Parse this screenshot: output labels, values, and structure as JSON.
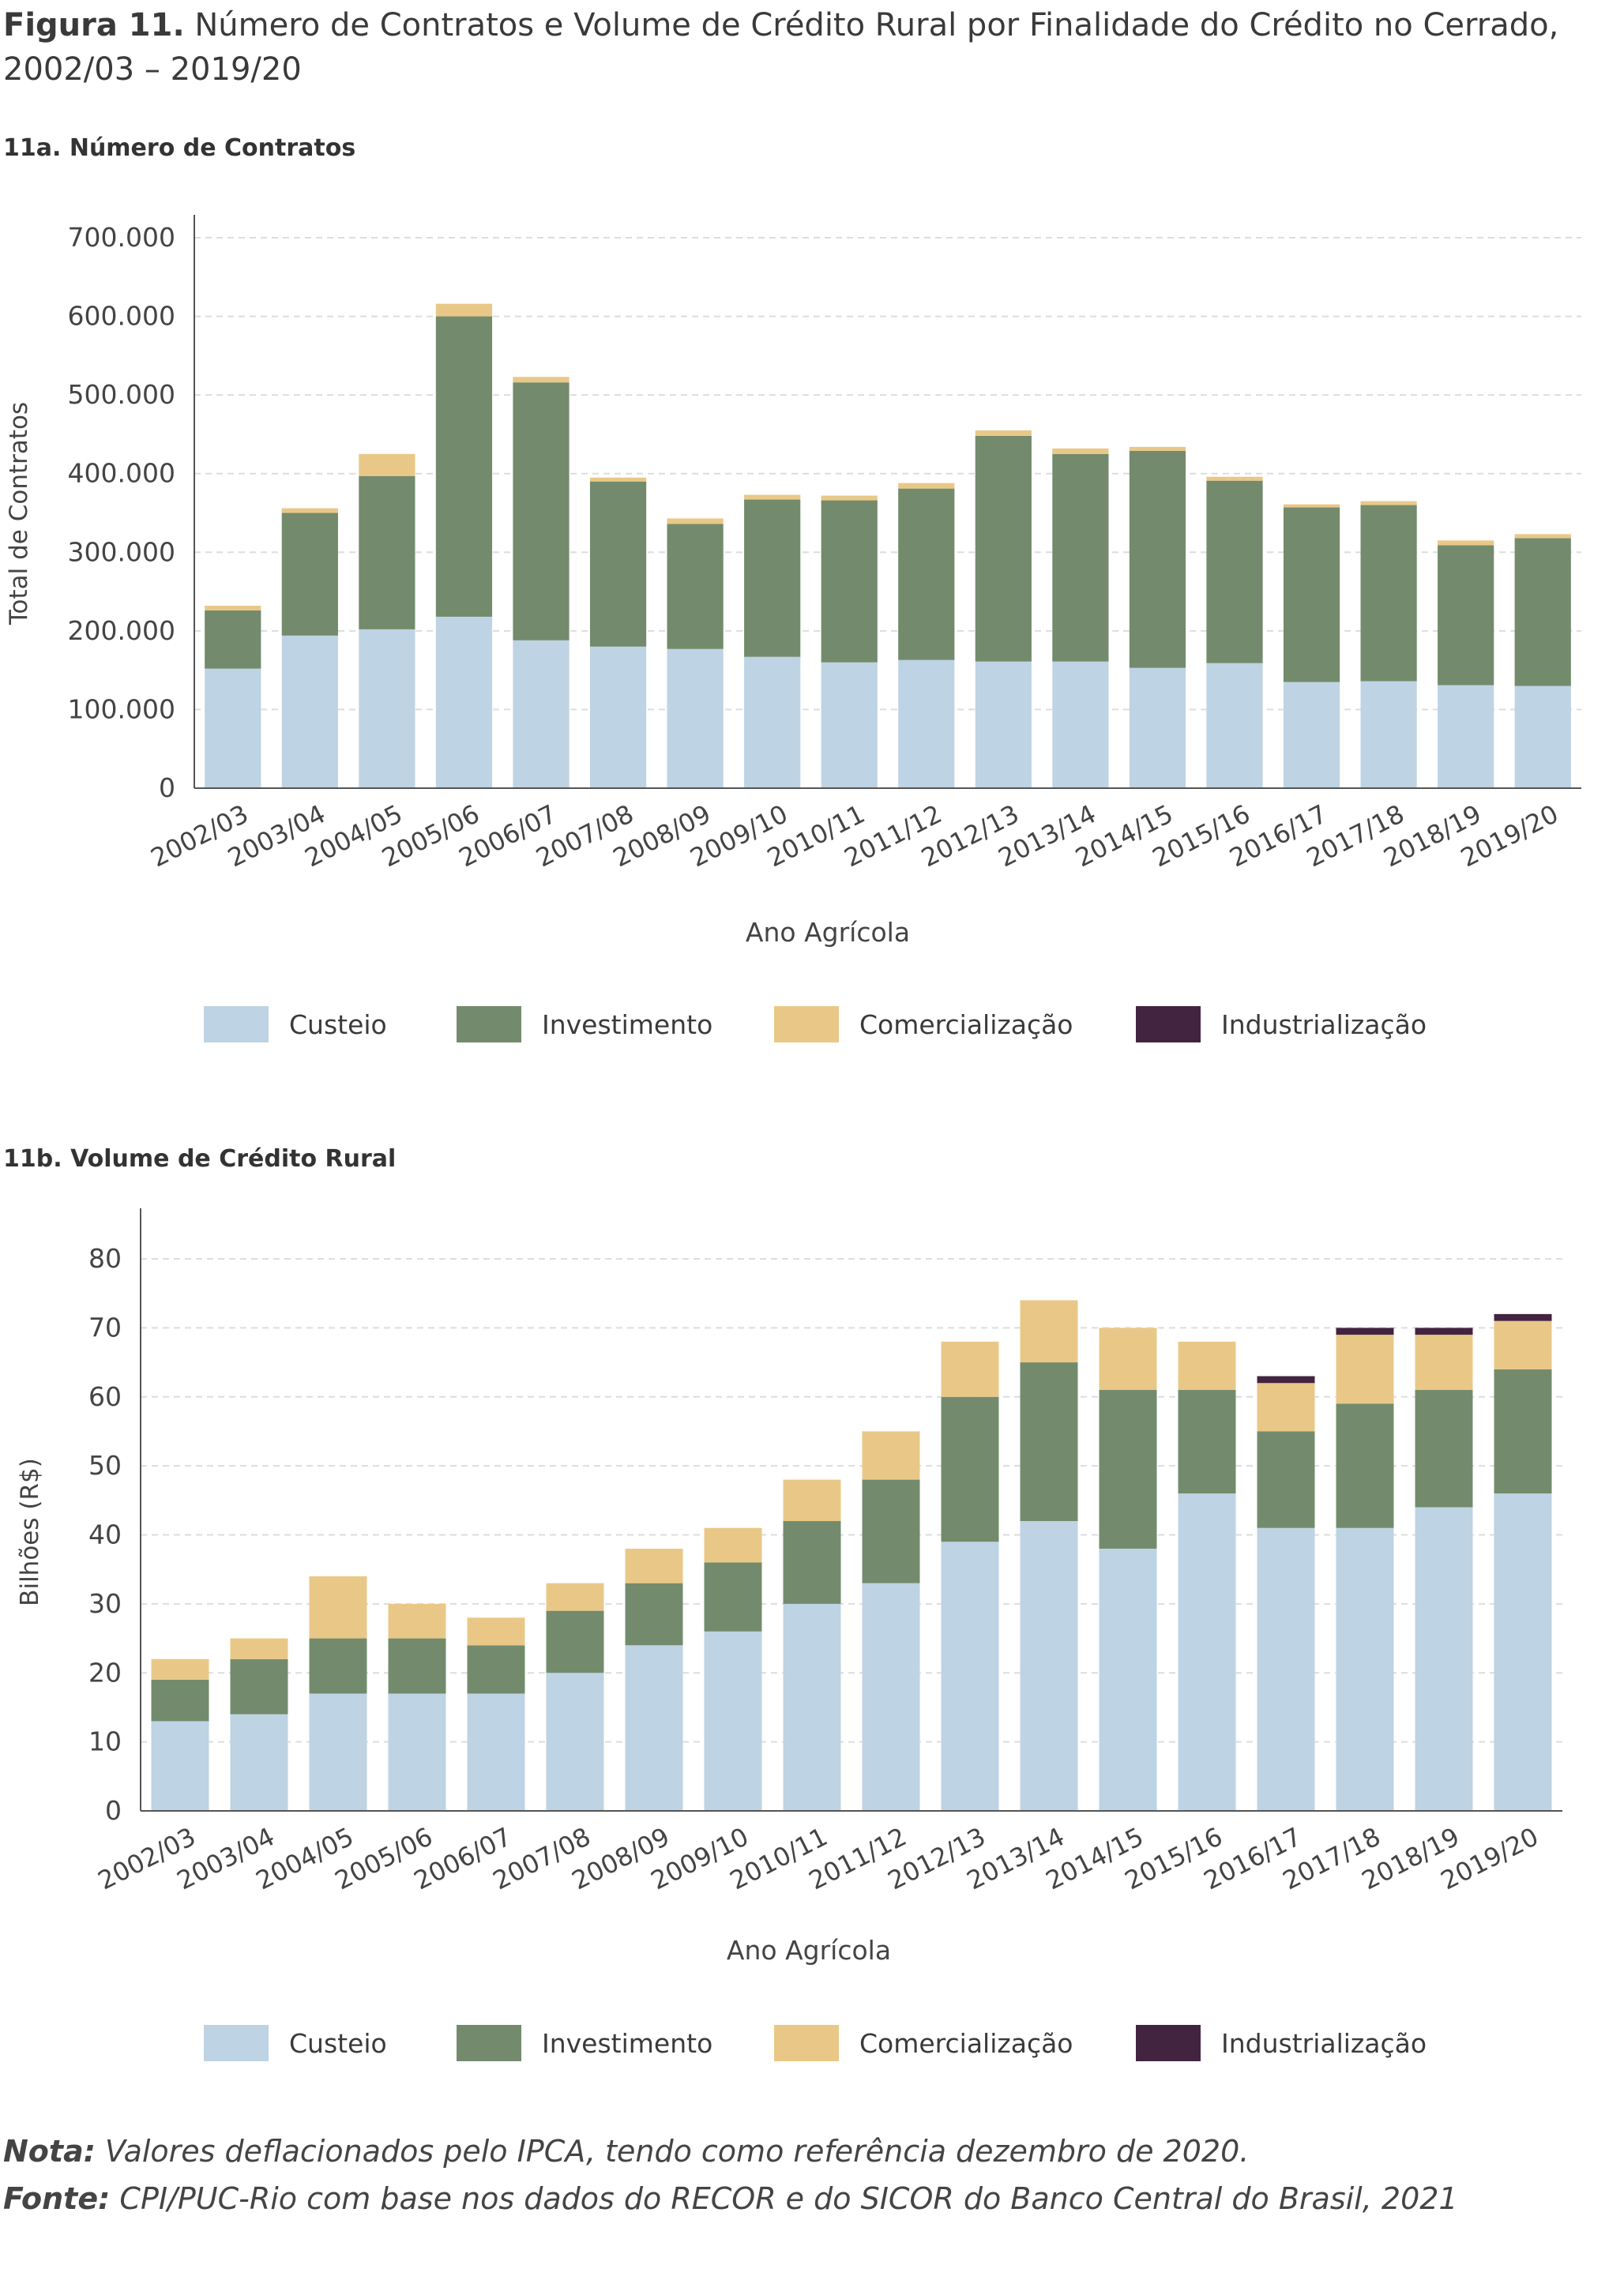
{
  "figure": {
    "label": "Figura 11.",
    "title": "Número de Contratos e Volume de Crédito Rural por Finalidade do Crédito no Cerrado, 2002/03 – 2019/20"
  },
  "colors": {
    "Custeio": "#bed3e3",
    "Investimento": "#738b6c",
    "Comercialização": "#e9c887",
    "Industrialização": "#432440",
    "axis": "#555555",
    "grid": "#dddddd"
  },
  "legend": [
    "Custeio",
    "Investimento",
    "Comercialização",
    "Industrialização"
  ],
  "chart_data": [
    {
      "type": "bar",
      "stacked": true,
      "title": "11a. Número de Contratos",
      "xlabel": "Ano Agrícola",
      "ylabel": "Total de Contratos",
      "ylim": [
        0,
        700000
      ],
      "yticks": [
        0,
        100000,
        200000,
        300000,
        400000,
        500000,
        600000,
        700000
      ],
      "ytick_labels": [
        "0",
        "100.000",
        "200.000",
        "300.000",
        "400.000",
        "500.000",
        "600.000",
        "700.000"
      ],
      "grid": true,
      "legend_position": "bottom",
      "categories": [
        "2002/03",
        "2003/04",
        "2004/05",
        "2005/06",
        "2006/07",
        "2007/08",
        "2008/09",
        "2009/10",
        "2010/11",
        "2011/12",
        "2012/13",
        "2013/14",
        "2014/15",
        "2015/16",
        "2016/17",
        "2017/18",
        "2018/19",
        "2019/20"
      ],
      "series": [
        {
          "name": "Custeio",
          "values": [
            152000,
            194000,
            202000,
            218000,
            188000,
            180000,
            177000,
            167000,
            160000,
            163000,
            161000,
            161000,
            153000,
            159000,
            135000,
            136000,
            131000,
            130000
          ]
        },
        {
          "name": "Investimento",
          "values": [
            74000,
            156000,
            195000,
            382000,
            328000,
            210000,
            159000,
            200000,
            206000,
            218000,
            287000,
            264000,
            276000,
            232000,
            222000,
            224000,
            178000,
            188000
          ]
        },
        {
          "name": "Comercialização",
          "values": [
            6000,
            6000,
            28000,
            16000,
            7000,
            5000,
            7000,
            6000,
            6000,
            7000,
            7000,
            7000,
            5000,
            5000,
            4000,
            5000,
            6000,
            5000
          ]
        },
        {
          "name": "Industrialização",
          "values": [
            0,
            0,
            0,
            0,
            0,
            0,
            0,
            0,
            0,
            0,
            0,
            0,
            0,
            0,
            0,
            0,
            0,
            0
          ]
        }
      ]
    },
    {
      "type": "bar",
      "stacked": true,
      "title": "11b. Volume de Crédito Rural",
      "xlabel": "Ano Agrícola",
      "ylabel": "Bilhões (R$)",
      "ylim": [
        0,
        80
      ],
      "yticks": [
        0,
        10,
        20,
        30,
        40,
        50,
        60,
        70,
        80
      ],
      "ytick_labels": [
        "0",
        "10",
        "20",
        "30",
        "40",
        "50",
        "60",
        "70",
        "80"
      ],
      "grid": true,
      "legend_position": "bottom",
      "categories": [
        "2002/03",
        "2003/04",
        "2004/05",
        "2005/06",
        "2006/07",
        "2007/08",
        "2008/09",
        "2009/10",
        "2010/11",
        "2011/12",
        "2012/13",
        "2013/14",
        "2014/15",
        "2015/16",
        "2016/17",
        "2017/18",
        "2018/19",
        "2019/20"
      ],
      "series": [
        {
          "name": "Custeio",
          "values": [
            13,
            14,
            17,
            17,
            17,
            20,
            24,
            26,
            30,
            33,
            39,
            42,
            38,
            46,
            41,
            41,
            44,
            46
          ]
        },
        {
          "name": "Investimento",
          "values": [
            6,
            8,
            8,
            8,
            7,
            9,
            9,
            10,
            12,
            15,
            21,
            23,
            23,
            15,
            14,
            18,
            17,
            18
          ]
        },
        {
          "name": "Comercialização",
          "values": [
            3,
            3,
            9,
            5,
            4,
            4,
            5,
            5,
            6,
            7,
            8,
            9,
            9,
            7,
            7,
            10,
            8,
            7
          ]
        },
        {
          "name": "Industrialização",
          "values": [
            0,
            0,
            0,
            0,
            0,
            0,
            0,
            0,
            0,
            0,
            0,
            0,
            0,
            0,
            1,
            1,
            1,
            1
          ]
        }
      ]
    }
  ],
  "footnotes": {
    "nota_label": "Nota:",
    "nota_text": "Valores deflacionados pelo IPCA, tendo como referência dezembro de 2020.",
    "fonte_label": "Fonte:",
    "fonte_text": "CPI/PUC-Rio com base nos dados do RECOR e do SICOR do Banco Central do Brasil, 2021"
  }
}
